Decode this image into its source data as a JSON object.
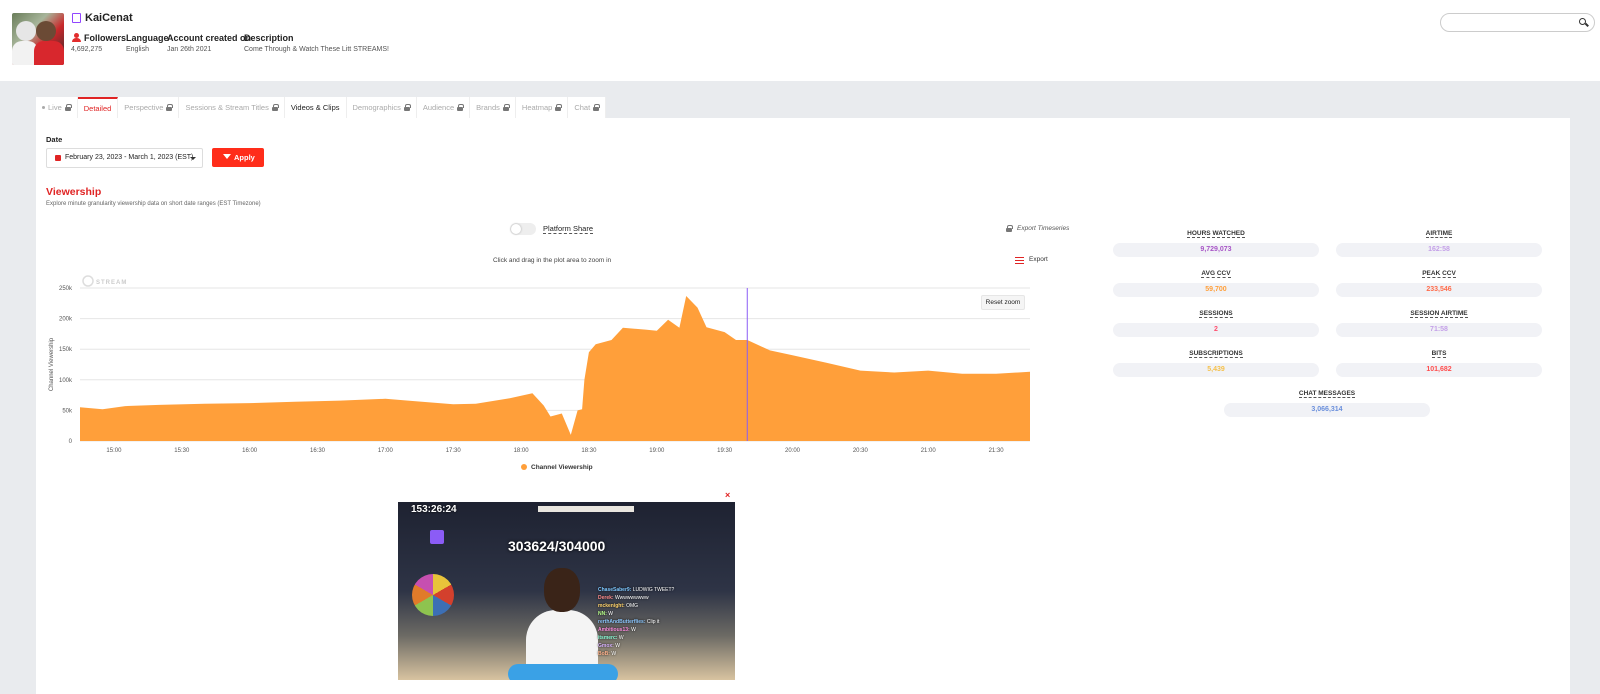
{
  "channel": {
    "name": "KaiCenat",
    "meta": [
      {
        "label": "Followers",
        "value": "4,692,275"
      },
      {
        "label": "Language",
        "value": "English"
      },
      {
        "label": "Account created on",
        "value": "Jan 26th 2021"
      },
      {
        "label": "Description",
        "value": "Come Through & Watch These Litt STREAMS!"
      }
    ]
  },
  "search": {
    "placeholder": ""
  },
  "tabs": [
    {
      "label": "Live",
      "state": "locked"
    },
    {
      "label": "Detailed",
      "state": "active"
    },
    {
      "label": "Perspective",
      "state": "locked"
    },
    {
      "label": "Sessions & Stream Titles",
      "state": "locked"
    },
    {
      "label": "Videos & Clips",
      "state": "enabled"
    },
    {
      "label": "Demographics",
      "state": "locked"
    },
    {
      "label": "Audience",
      "state": "locked"
    },
    {
      "label": "Brands",
      "state": "locked"
    },
    {
      "label": "Heatmap",
      "state": "locked"
    },
    {
      "label": "Chat",
      "state": "locked"
    }
  ],
  "filters": {
    "date_label": "Date",
    "date_range": "February 23, 2023 - March 1, 2023 (EST)",
    "apply_label": "Apply"
  },
  "viewership": {
    "title": "Viewership",
    "subtitle": "Explore minute granularity viewership data on short date ranges (EST Timezone)",
    "platform_share_label": "Platform Share",
    "export_timeseries_label": "Export Timeseries",
    "zoom_hint": "Click and drag in the plot area to zoom in",
    "export_label": "Export",
    "reset_zoom_label": "Reset zoom",
    "watermark": "STREAM"
  },
  "chart_data": {
    "type": "area",
    "title": "",
    "xlabel": "",
    "ylabel": "Channel Viewership",
    "ylim": [
      0,
      250000
    ],
    "yticks": [
      "0",
      "50k",
      "100k",
      "150k",
      "200k",
      "250k"
    ],
    "xticks": [
      "15:00",
      "15:30",
      "16:00",
      "16:30",
      "17:00",
      "17:30",
      "18:00",
      "18:30",
      "19:00",
      "19:30",
      "20:00",
      "20:30",
      "21:00",
      "21:30"
    ],
    "x_start": "14:45",
    "x_end": "21:45",
    "grid": true,
    "legend": "bottom",
    "cursor_x": "19:40",
    "color": "#ff9f3a",
    "series": [
      {
        "name": "Channel Viewership",
        "points": [
          [
            "14:45",
            55000
          ],
          [
            "14:55",
            52000
          ],
          [
            "15:05",
            57000
          ],
          [
            "15:20",
            59000
          ],
          [
            "15:40",
            61000
          ],
          [
            "16:00",
            62000
          ],
          [
            "16:20",
            64000
          ],
          [
            "16:40",
            66000
          ],
          [
            "17:00",
            69000
          ],
          [
            "17:10",
            66000
          ],
          [
            "17:30",
            60000
          ],
          [
            "17:40",
            61000
          ],
          [
            "17:55",
            70000
          ],
          [
            "18:05",
            78000
          ],
          [
            "18:10",
            58000
          ],
          [
            "18:13",
            40000
          ],
          [
            "18:18",
            45000
          ],
          [
            "18:22",
            10000
          ],
          [
            "18:25",
            50000
          ],
          [
            "18:27",
            52000
          ],
          [
            "18:28",
            100000
          ],
          [
            "18:30",
            145000
          ],
          [
            "18:33",
            158000
          ],
          [
            "18:40",
            165000
          ],
          [
            "18:45",
            185000
          ],
          [
            "18:55",
            182000
          ],
          [
            "19:00",
            180000
          ],
          [
            "19:05",
            198000
          ],
          [
            "19:10",
            185000
          ],
          [
            "19:13",
            237000
          ],
          [
            "19:18",
            218000
          ],
          [
            "19:22",
            186000
          ],
          [
            "19:30",
            178000
          ],
          [
            "19:35",
            165000
          ],
          [
            "19:40",
            165000
          ],
          [
            "19:50",
            148000
          ],
          [
            "20:00",
            140000
          ],
          [
            "20:15",
            128000
          ],
          [
            "20:30",
            115000
          ],
          [
            "20:45",
            112000
          ],
          [
            "21:00",
            115000
          ],
          [
            "21:15",
            110000
          ],
          [
            "21:30",
            110000
          ],
          [
            "21:45",
            113000
          ]
        ]
      }
    ]
  },
  "stats": [
    {
      "label": "HOURS WATCHED",
      "value": "9,729,073",
      "color": "#a855c7"
    },
    {
      "label": "AIRTIME",
      "value": "162:58",
      "color": "#c4a0e8"
    },
    {
      "label": "AVG CCV",
      "value": "59,700",
      "color": "#ff9f3a"
    },
    {
      "label": "PEAK CCV",
      "value": "233,546",
      "color": "#ff6b4a"
    },
    {
      "label": "SESSIONS",
      "value": "2",
      "color": "#ff4d6d"
    },
    {
      "label": "SESSION AIRTIME",
      "value": "71:58",
      "color": "#c4a0e8"
    },
    {
      "label": "SUBSCRIPTIONS",
      "value": "5,439",
      "color": "#f5c04a"
    },
    {
      "label": "BITS",
      "value": "101,682",
      "color": "#ff4d4d"
    },
    {
      "label": "CHAT MESSAGES",
      "value": "3,066,314",
      "color": "#6a8fdc"
    }
  ],
  "video": {
    "timer": "153:26:24",
    "sub_count": "303624/304000",
    "close_label": "×",
    "chat": [
      {
        "user": "ChaseSaber9",
        "msg": "LUDWIG TWEET?"
      },
      {
        "user": "Derek",
        "msg": "Wwwwwwwww"
      },
      {
        "user": "mckenight",
        "msg": "OMG"
      },
      {
        "user": "NN",
        "msg": "W"
      },
      {
        "user": "rerthAndButterflies",
        "msg": "Clip it"
      },
      {
        "user": "Ambitious13",
        "msg": "W"
      },
      {
        "user": "itsmerc",
        "msg": "W"
      },
      {
        "user": "Gmox",
        "msg": "W"
      },
      {
        "user": "BoB",
        "msg": "W"
      }
    ]
  }
}
